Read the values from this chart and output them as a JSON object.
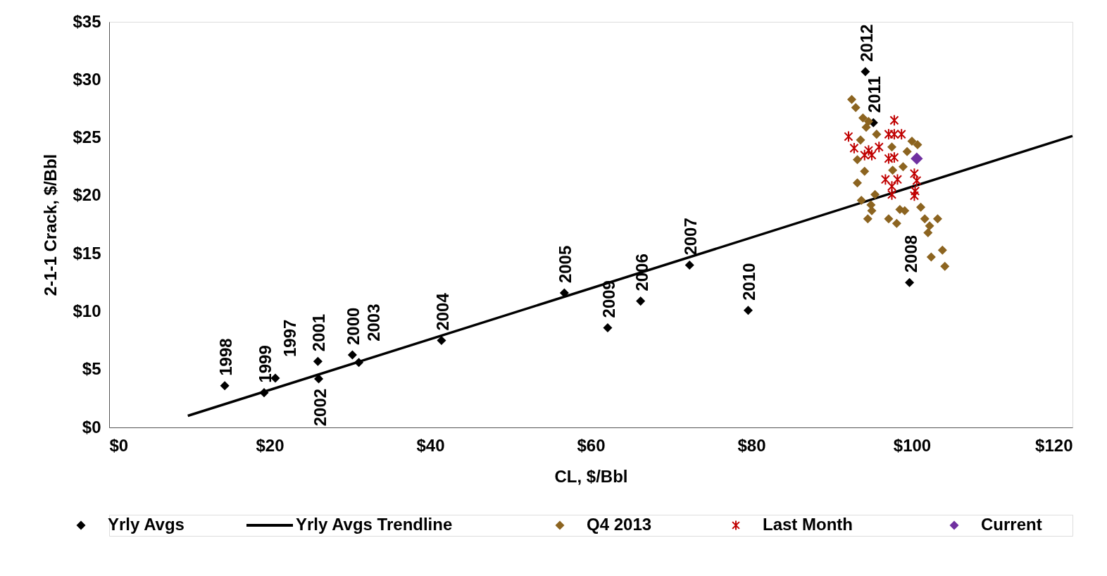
{
  "chart_data": {
    "type": "scatter",
    "xlabel": "CL, $/Bbl",
    "ylabel": "2-1-1 Crack, $/Bbl",
    "xlim": [
      0,
      120
    ],
    "ylim": [
      0,
      35
    ],
    "xticks": [
      {
        "value": 0,
        "label": "$0"
      },
      {
        "value": 20,
        "label": "$20"
      },
      {
        "value": 40,
        "label": "$40"
      },
      {
        "value": 60,
        "label": "$60"
      },
      {
        "value": 80,
        "label": "$80"
      },
      {
        "value": 100,
        "label": "$100"
      },
      {
        "value": 120,
        "label": "$120"
      }
    ],
    "yticks": [
      {
        "value": 0,
        "label": "$0"
      },
      {
        "value": 5,
        "label": "$5"
      },
      {
        "value": 10,
        "label": "$10"
      },
      {
        "value": 15,
        "label": "$15"
      },
      {
        "value": 20,
        "label": "$20"
      },
      {
        "value": 25,
        "label": "$25"
      },
      {
        "value": 30,
        "label": "$30"
      },
      {
        "value": 35,
        "label": "$35"
      }
    ],
    "grid": false,
    "legend": "bottom",
    "series": [
      {
        "name": "Yrly Avgs",
        "type": "scatter",
        "marker": "diamond",
        "color": "#000000",
        "x": [
          14.4,
          19.3,
          20.7,
          26.0,
          26.1,
          30.3,
          31.1,
          41.4,
          56.7,
          62.1,
          66.2,
          72.3,
          79.6,
          99.7,
          95.2,
          94.2
        ],
        "values": [
          3.6,
          3.0,
          4.25,
          5.7,
          4.2,
          6.26,
          5.6,
          7.5,
          11.6,
          8.6,
          10.9,
          14.0,
          10.1,
          12.5,
          26.3,
          30.7
        ]
      },
      {
        "name": "Yrly Avgs Trendline",
        "type": "line",
        "marker": "none",
        "color": "#000000",
        "x": [
          9.8,
          120
        ],
        "values": [
          1.0,
          25.15
        ]
      },
      {
        "name": "Q4 2013",
        "type": "scatter",
        "marker": "diamond",
        "color": "#8c6420",
        "x": [
          92.5,
          93.0,
          93.9,
          94.6,
          94.3,
          95.6,
          93.6,
          97.5,
          100.0,
          100.7,
          99.4,
          93.2,
          98.9,
          97.6,
          94.1,
          93.2,
          95.4,
          93.7,
          94.9,
          95.0,
          94.5,
          98.5,
          99.1,
          97.1,
          98.1,
          101.1,
          101.6,
          103.2,
          102.2,
          102.0,
          102.4,
          103.8,
          104.1
        ],
        "values": [
          28.3,
          27.6,
          26.7,
          26.4,
          25.9,
          25.3,
          24.8,
          24.2,
          24.7,
          24.4,
          23.8,
          23.1,
          22.5,
          22.2,
          22.1,
          21.1,
          20.1,
          19.6,
          19.2,
          18.7,
          18.0,
          18.8,
          18.7,
          18.0,
          17.6,
          19.0,
          18.0,
          18.0,
          17.4,
          16.8,
          14.7,
          15.3,
          13.9
        ]
      },
      {
        "name": "Last Month",
        "type": "scatter",
        "marker": "cross",
        "color": "#c00000",
        "x": [
          92.1,
          92.8,
          94.6,
          94.1,
          95.0,
          95.9,
          97.8,
          97.1,
          97.8,
          98.7,
          97.1,
          97.8,
          96.7,
          98.2,
          97.5,
          97.5,
          100.3,
          100.6,
          100.4,
          100.3
        ],
        "values": [
          25.1,
          24.1,
          23.9,
          23.5,
          23.5,
          24.2,
          26.5,
          25.3,
          25.3,
          25.3,
          23.2,
          23.3,
          21.4,
          21.4,
          20.8,
          20.1,
          21.9,
          21.3,
          20.4,
          20.0
        ]
      },
      {
        "name": "Current",
        "type": "scatter",
        "marker": "diamond",
        "color": "#7030a0",
        "x": [
          100.6
        ],
        "values": [
          23.2
        ]
      }
    ],
    "annotations": [
      {
        "text": "1998",
        "x": 14.4,
        "y": 3.6
      },
      {
        "text": "1999",
        "x": 19.3,
        "y": 3.0
      },
      {
        "text": "1997",
        "x": 20.7,
        "y": 4.25
      },
      {
        "text": "2001",
        "x": 26.0,
        "y": 5.7
      },
      {
        "text": "2002",
        "x": 26.1,
        "y": 4.2
      },
      {
        "text": "2000",
        "x": 30.3,
        "y": 6.26
      },
      {
        "text": "2003",
        "x": 31.1,
        "y": 5.6
      },
      {
        "text": "2004",
        "x": 41.4,
        "y": 7.5
      },
      {
        "text": "2005",
        "x": 56.7,
        "y": 11.6
      },
      {
        "text": "2009",
        "x": 62.1,
        "y": 8.6
      },
      {
        "text": "2006",
        "x": 66.2,
        "y": 10.9
      },
      {
        "text": "2007",
        "x": 72.3,
        "y": 14.0
      },
      {
        "text": "2010",
        "x": 79.6,
        "y": 10.1
      },
      {
        "text": "2008",
        "x": 99.7,
        "y": 12.5
      },
      {
        "text": "2011",
        "x": 95.2,
        "y": 26.3
      },
      {
        "text": "2012",
        "x": 94.2,
        "y": 30.7
      }
    ]
  }
}
